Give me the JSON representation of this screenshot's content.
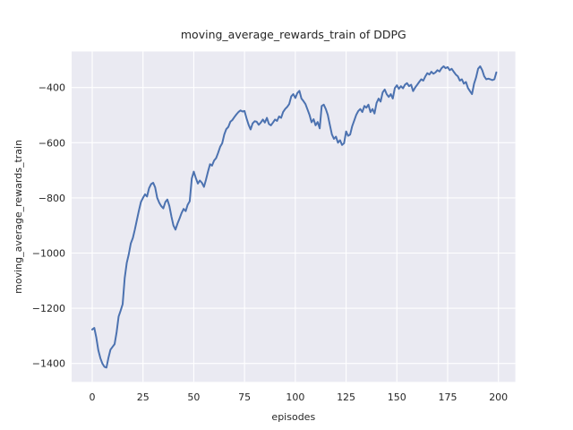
{
  "chart_data": {
    "type": "line",
    "title": "moving_average_rewards_train of DDPG",
    "xlabel": "episodes",
    "ylabel": "moving_average_rewards_train",
    "x_range": [
      0,
      199
    ],
    "xlim": [
      -10,
      208
    ],
    "ylim": [
      -1470,
      -270
    ],
    "x_ticks": [
      0,
      25,
      50,
      75,
      100,
      125,
      150,
      175,
      200
    ],
    "y_ticks": [
      -400,
      -600,
      -800,
      -1000,
      -1200,
      -1400
    ],
    "grid": true,
    "legend": false,
    "style": {
      "line_color": "#4C72B0",
      "axes_background": "#EAEAF2",
      "grid_color": "#FFFFFF",
      "text_color": "#262626",
      "figure_background": "#FFFFFF"
    },
    "series": [
      {
        "name": "moving_average_rewards_train",
        "x_start": 0,
        "x_step": 1,
        "values": [
          -1277,
          -1271,
          -1305,
          -1352,
          -1381,
          -1400,
          -1412,
          -1415,
          -1380,
          -1350,
          -1340,
          -1330,
          -1288,
          -1230,
          -1208,
          -1185,
          -1090,
          -1035,
          -1005,
          -965,
          -945,
          -915,
          -880,
          -845,
          -815,
          -800,
          -787,
          -795,
          -765,
          -750,
          -745,
          -762,
          -800,
          -818,
          -830,
          -838,
          -815,
          -806,
          -830,
          -868,
          -900,
          -915,
          -893,
          -875,
          -855,
          -840,
          -848,
          -825,
          -812,
          -730,
          -705,
          -728,
          -748,
          -737,
          -745,
          -760,
          -735,
          -705,
          -678,
          -683,
          -665,
          -656,
          -637,
          -615,
          -602,
          -570,
          -551,
          -543,
          -524,
          -518,
          -507,
          -497,
          -489,
          -483,
          -487,
          -485,
          -512,
          -535,
          -552,
          -530,
          -522,
          -524,
          -535,
          -527,
          -516,
          -527,
          -510,
          -532,
          -537,
          -527,
          -516,
          -521,
          -505,
          -510,
          -489,
          -478,
          -470,
          -460,
          -432,
          -424,
          -438,
          -420,
          -412,
          -440,
          -449,
          -460,
          -480,
          -499,
          -526,
          -515,
          -537,
          -525,
          -548,
          -467,
          -462,
          -478,
          -499,
          -535,
          -570,
          -586,
          -578,
          -600,
          -591,
          -608,
          -602,
          -559,
          -575,
          -570,
          -540,
          -520,
          -499,
          -485,
          -478,
          -489,
          -467,
          -473,
          -462,
          -489,
          -478,
          -494,
          -456,
          -440,
          -451,
          -418,
          -407,
          -424,
          -434,
          -424,
          -440,
          -402,
          -392,
          -405,
          -395,
          -403,
          -390,
          -384,
          -395,
          -390,
          -413,
          -400,
          -390,
          -380,
          -370,
          -375,
          -360,
          -348,
          -353,
          -343,
          -350,
          -345,
          -337,
          -342,
          -330,
          -323,
          -330,
          -326,
          -337,
          -332,
          -343,
          -353,
          -359,
          -375,
          -370,
          -386,
          -380,
          -402,
          -413,
          -424,
          -386,
          -364,
          -332,
          -323,
          -337,
          -359,
          -370,
          -368,
          -370,
          -373,
          -370,
          -345
        ]
      }
    ]
  }
}
